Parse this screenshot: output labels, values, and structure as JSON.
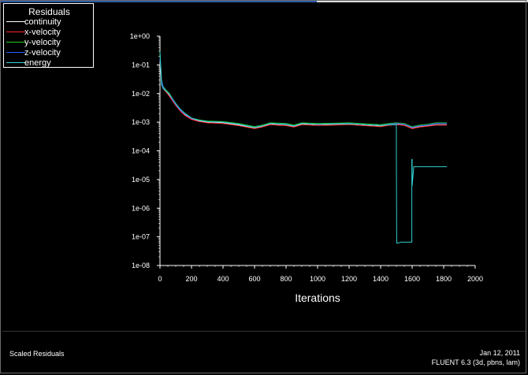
{
  "legend": {
    "title": "Residuals",
    "items": [
      {
        "label": "continuity",
        "color": "#ffffff"
      },
      {
        "label": "x-velocity",
        "color": "#ff2a2a"
      },
      {
        "label": "y-velocity",
        "color": "#22c822"
      },
      {
        "label": "z-velocity",
        "color": "#2f5bff"
      },
      {
        "label": "energy",
        "color": "#2fd0d0"
      }
    ]
  },
  "footer": {
    "left_label": "Scaled Residuals",
    "date": "Jan 12, 2011",
    "version": "FLUENT 6.3 (3d, pbns, lam)"
  },
  "chart_data": {
    "type": "line",
    "xlabel": "Iterations",
    "ylabel": "",
    "xlim": [
      0,
      2000
    ],
    "ylim": [
      1e-08,
      1
    ],
    "y_scale": "log",
    "x_ticks": [
      0,
      200,
      400,
      600,
      800,
      1000,
      1200,
      1400,
      1600,
      1800,
      2000
    ],
    "y_tick_labels": [
      "1e+00",
      "1e-01",
      "1e-02",
      "1e-03",
      "1e-04",
      "1e-05",
      "1e-06",
      "1e-07",
      "1e-08"
    ],
    "y_tick_values": [
      1,
      0.1,
      0.01,
      0.001,
      0.0001,
      1e-05,
      1e-06,
      1e-07,
      1e-08
    ],
    "series": [
      {
        "name": "continuity",
        "color": "#ffffff",
        "x": [
          0,
          10,
          20,
          40,
          60,
          80,
          100,
          130,
          160,
          200,
          250,
          300,
          400,
          500,
          600,
          650,
          700,
          800,
          850,
          900,
          1000,
          1100,
          1200,
          1300,
          1400,
          1450,
          1500,
          1550,
          1600,
          1650,
          1700,
          1750,
          1800,
          1820
        ],
        "y": [
          0.12,
          0.03,
          0.016,
          0.012,
          0.009,
          0.006,
          0.004,
          0.0025,
          0.0018,
          0.0013,
          0.0011,
          0.001,
          0.00095,
          0.0008,
          0.00062,
          0.0007,
          0.00085,
          0.00078,
          0.0007,
          0.00085,
          0.0008,
          0.00082,
          0.00085,
          0.00078,
          0.00072,
          0.0008,
          0.00085,
          0.0008,
          0.00062,
          0.0007,
          0.00075,
          0.00082,
          0.00082,
          0.00082
        ]
      },
      {
        "name": "x-velocity",
        "color": "#ff2a2a",
        "x": [
          0,
          10,
          20,
          40,
          60,
          80,
          100,
          130,
          160,
          200,
          250,
          300,
          400,
          500,
          600,
          650,
          700,
          800,
          850,
          900,
          1000,
          1100,
          1200,
          1300,
          1400,
          1450,
          1500,
          1550,
          1600,
          1650,
          1700,
          1750,
          1800,
          1820
        ],
        "y": [
          0.2,
          0.025,
          0.015,
          0.011,
          0.008,
          0.0055,
          0.0038,
          0.0024,
          0.0017,
          0.00125,
          0.00105,
          0.00095,
          0.0009,
          0.00076,
          0.0006,
          0.00068,
          0.00082,
          0.00076,
          0.00068,
          0.00082,
          0.00078,
          0.0008,
          0.00083,
          0.00076,
          0.0007,
          0.00078,
          0.00083,
          0.00078,
          0.0006,
          0.00068,
          0.00073,
          0.0008,
          0.0008,
          0.0008
        ]
      },
      {
        "name": "y-velocity",
        "color": "#22c822",
        "x": [
          0,
          10,
          20,
          40,
          60,
          80,
          100,
          130,
          160,
          200,
          250,
          300,
          400,
          500,
          600,
          650,
          700,
          800,
          850,
          900,
          1000,
          1100,
          1200,
          1300,
          1400,
          1450,
          1500,
          1550,
          1600,
          1650,
          1700,
          1750,
          1800,
          1820
        ],
        "y": [
          0.25,
          0.03,
          0.018,
          0.013,
          0.01,
          0.0065,
          0.0045,
          0.0028,
          0.002,
          0.0014,
          0.0012,
          0.0011,
          0.00105,
          0.0009,
          0.0007,
          0.0008,
          0.00095,
          0.0009,
          0.0008,
          0.00095,
          0.0009,
          0.00092,
          0.00095,
          0.00088,
          0.00082,
          0.0009,
          0.00095,
          0.0009,
          0.0007,
          0.0008,
          0.00085,
          0.00095,
          0.00095,
          0.00095
        ]
      },
      {
        "name": "z-velocity",
        "color": "#2f5bff",
        "x": [
          0,
          10,
          20,
          40,
          60,
          80,
          100,
          130,
          160,
          200,
          250,
          300,
          400,
          500,
          600,
          650,
          700,
          800,
          850,
          900,
          1000,
          1100,
          1200,
          1300,
          1400,
          1450,
          1500,
          1550,
          1600,
          1650,
          1700,
          1750,
          1800,
          1820
        ],
        "y": [
          0.18,
          0.028,
          0.017,
          0.012,
          0.0095,
          0.006,
          0.0042,
          0.0026,
          0.0019,
          0.00135,
          0.00115,
          0.00105,
          0.001,
          0.00085,
          0.00066,
          0.00075,
          0.0009,
          0.00085,
          0.00075,
          0.0009,
          0.00085,
          0.00087,
          0.0009,
          0.00083,
          0.00077,
          0.00085,
          0.0009,
          0.00085,
          0.00066,
          0.00075,
          0.0008,
          0.0009,
          0.0009,
          0.0009
        ]
      },
      {
        "name": "energy",
        "color": "#2fd0d0",
        "x": [
          0,
          10,
          20,
          40,
          60,
          80,
          100,
          130,
          160,
          200,
          250,
          300,
          400,
          500,
          600,
          650,
          700,
          800,
          850,
          900,
          1000,
          1100,
          1200,
          1300,
          1400,
          1450,
          1498,
          1500,
          1500,
          1502,
          1530,
          1590,
          1598,
          1598,
          1600,
          1600,
          1610,
          1700,
          1820
        ],
        "y": [
          0.3,
          0.02,
          0.015,
          0.012,
          0.0095,
          0.0065,
          0.0045,
          0.0028,
          0.002,
          0.0014,
          0.00115,
          0.00105,
          0.001,
          0.00085,
          0.00065,
          0.00075,
          0.0009,
          0.00085,
          0.00075,
          0.0009,
          0.00085,
          0.00087,
          0.00088,
          0.00083,
          0.00077,
          0.00082,
          0.00083,
          0.00083,
          5.5e-05,
          6e-08,
          6.5e-08,
          6.5e-08,
          6.5e-08,
          5e-05,
          5e-05,
          6e-06,
          2.8e-05,
          2.8e-05,
          2.8e-05
        ]
      }
    ]
  }
}
